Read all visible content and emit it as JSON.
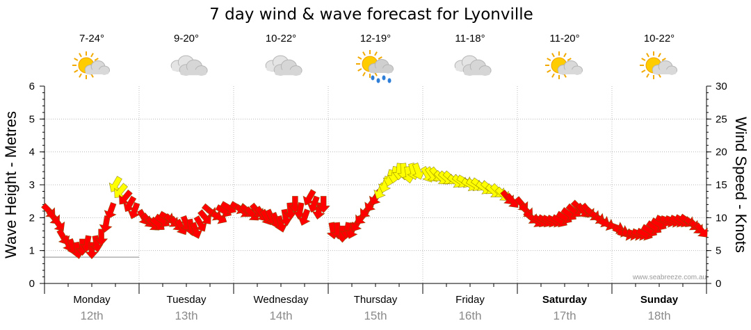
{
  "chart_data": {
    "type": "line",
    "title": "7 day wind & wave forecast for Lyonville",
    "ylabel_left": "Wave Height - Metres",
    "ylabel_right": "Wind Speed - Knots",
    "ylim_left": [
      0,
      6
    ],
    "ylim_right": [
      0,
      30
    ],
    "yticks_left": [
      "0",
      "1",
      "2",
      "3",
      "4",
      "5",
      "6"
    ],
    "yticks_right": [
      "0",
      "5",
      "10",
      "15",
      "20",
      "25",
      "30"
    ],
    "grid": true,
    "watermark": "www.seabreeze.com.au",
    "days": [
      {
        "name": "Monday",
        "date": "12th",
        "temp": "7-24°",
        "weather": "partly-sunny-icon",
        "bold": false
      },
      {
        "name": "Tuesday",
        "date": "13th",
        "temp": "9-20°",
        "weather": "cloudy-icon",
        "bold": false
      },
      {
        "name": "Wednesday",
        "date": "14th",
        "temp": "10-22°",
        "weather": "cloudy-icon",
        "bold": false
      },
      {
        "name": "Thursday",
        "date": "15th",
        "temp": "12-19°",
        "weather": "sun-rain-icon",
        "bold": false
      },
      {
        "name": "Friday",
        "date": "16th",
        "temp": "11-18°",
        "weather": "cloudy-icon",
        "bold": false
      },
      {
        "name": "Saturday",
        "date": "17th",
        "temp": "11-20°",
        "weather": "partly-sunny-icon",
        "bold": true
      },
      {
        "name": "Sunday",
        "date": "18th",
        "temp": "10-22°",
        "weather": "partly-sunny-icon",
        "bold": true
      }
    ],
    "series": [
      {
        "type": "wave_height_line",
        "color": "#888888",
        "x": [
          0.0,
          0.25,
          0.5,
          0.75,
          1.0
        ],
        "y": [
          0.8,
          0.8,
          0.8,
          0.8,
          0.8
        ]
      },
      {
        "type": "wind_arrows",
        "colors": {
          "strong": "#ffff00",
          "moderate": "#ff0000"
        },
        "x": [
          0.05,
          0.1,
          0.15,
          0.2,
          0.25,
          0.3,
          0.35,
          0.4,
          0.45,
          0.5,
          0.55,
          0.6,
          0.65,
          0.7,
          0.75,
          0.8,
          0.85,
          0.9,
          0.95,
          1.05,
          1.1,
          1.15,
          1.2,
          1.25,
          1.3,
          1.35,
          1.4,
          1.45,
          1.5,
          1.55,
          1.6,
          1.65,
          1.7,
          1.75,
          1.8,
          1.85,
          1.9,
          1.95,
          2.05,
          2.1,
          2.15,
          2.2,
          2.25,
          2.3,
          2.35,
          2.4,
          2.45,
          2.5,
          2.55,
          2.6,
          2.65,
          2.7,
          2.75,
          2.8,
          2.85,
          2.9,
          2.95,
          3.05,
          3.1,
          3.15,
          3.2,
          3.25,
          3.3,
          3.35,
          3.4,
          3.45,
          3.5,
          3.55,
          3.6,
          3.65,
          3.7,
          3.75,
          3.8,
          3.85,
          3.9,
          3.95,
          4.05,
          4.1,
          4.15,
          4.2,
          4.25,
          4.3,
          4.35,
          4.4,
          4.45,
          4.5,
          4.55,
          4.6,
          4.65,
          4.7,
          4.75,
          4.8,
          4.85,
          4.9,
          4.95,
          5.05,
          5.1,
          5.15,
          5.2,
          5.25,
          5.3,
          5.35,
          5.4,
          5.45,
          5.5,
          5.55,
          5.6,
          5.65,
          5.7,
          5.75,
          5.8,
          5.85,
          5.9,
          5.95,
          6.05,
          6.1,
          6.15,
          6.2,
          6.25,
          6.3,
          6.35,
          6.4,
          6.45,
          6.5,
          6.55,
          6.6,
          6.65,
          6.7,
          6.75,
          6.8,
          6.85,
          6.9,
          6.95
        ],
        "speed_knots": [
          11,
          10,
          9,
          7,
          6,
          5.5,
          5,
          5.5,
          6,
          5,
          6,
          7,
          9,
          11,
          15,
          14,
          13,
          12,
          11,
          10,
          9.5,
          9,
          9,
          9.5,
          10,
          9.5,
          9,
          8.5,
          9,
          8.5,
          8,
          9,
          10,
          11,
          10.5,
          10,
          11,
          11.5,
          11.5,
          11,
          11,
          10.5,
          11,
          10.5,
          10,
          10,
          9.5,
          9,
          10,
          11,
          12,
          11,
          10,
          13,
          12,
          11,
          12,
          8,
          8,
          7.5,
          8,
          8,
          9,
          10,
          11,
          12,
          13,
          14,
          15,
          16,
          16.5,
          17,
          17,
          16.5,
          17,
          17,
          16.5,
          16.5,
          16.5,
          16,
          16,
          16,
          15.5,
          15.5,
          15.5,
          15,
          15,
          15,
          14.5,
          14.5,
          14,
          14,
          13.5,
          13,
          12.5,
          12,
          11,
          10,
          9.5,
          9.5,
          9.5,
          9.5,
          9.5,
          9.5,
          10,
          10.5,
          11,
          11.5,
          11,
          11,
          10.5,
          10,
          9.5,
          9,
          8.5,
          8,
          7.5,
          7.5,
          7.5,
          7.5,
          7.5,
          8,
          8.5,
          9,
          9.5,
          9.5,
          9.5,
          9.5,
          9.5,
          9.5,
          9,
          8.5,
          8
        ],
        "direction_deg": [
          315,
          320,
          325,
          330,
          335,
          340,
          350,
          0,
          10,
          0,
          350,
          0,
          10,
          20,
          30,
          40,
          40,
          30,
          20,
          330,
          320,
          315,
          310,
          305,
          300,
          310,
          320,
          330,
          340,
          350,
          340,
          330,
          320,
          310,
          305,
          300,
          300,
          300,
          300,
          305,
          310,
          315,
          320,
          325,
          330,
          335,
          340,
          345,
          350,
          355,
          0,
          10,
          20,
          30,
          20,
          10,
          0,
          350,
          355,
          0,
          10,
          20,
          30,
          40,
          40,
          35,
          30,
          25,
          20,
          15,
          10,
          5,
          355,
          350,
          345,
          340,
          330,
          325,
          320,
          315,
          310,
          310,
          305,
          305,
          300,
          300,
          300,
          305,
          305,
          310,
          310,
          315,
          315,
          320,
          320,
          320,
          315,
          310,
          305,
          300,
          300,
          295,
          295,
          300,
          300,
          305,
          310,
          315,
          320,
          320,
          310,
          305,
          300,
          295,
          290,
          290,
          285,
          285,
          285,
          290,
          295,
          300,
          305,
          300,
          295,
          290,
          290,
          295,
          300,
          305,
          310,
          315,
          320
        ]
      }
    ]
  }
}
